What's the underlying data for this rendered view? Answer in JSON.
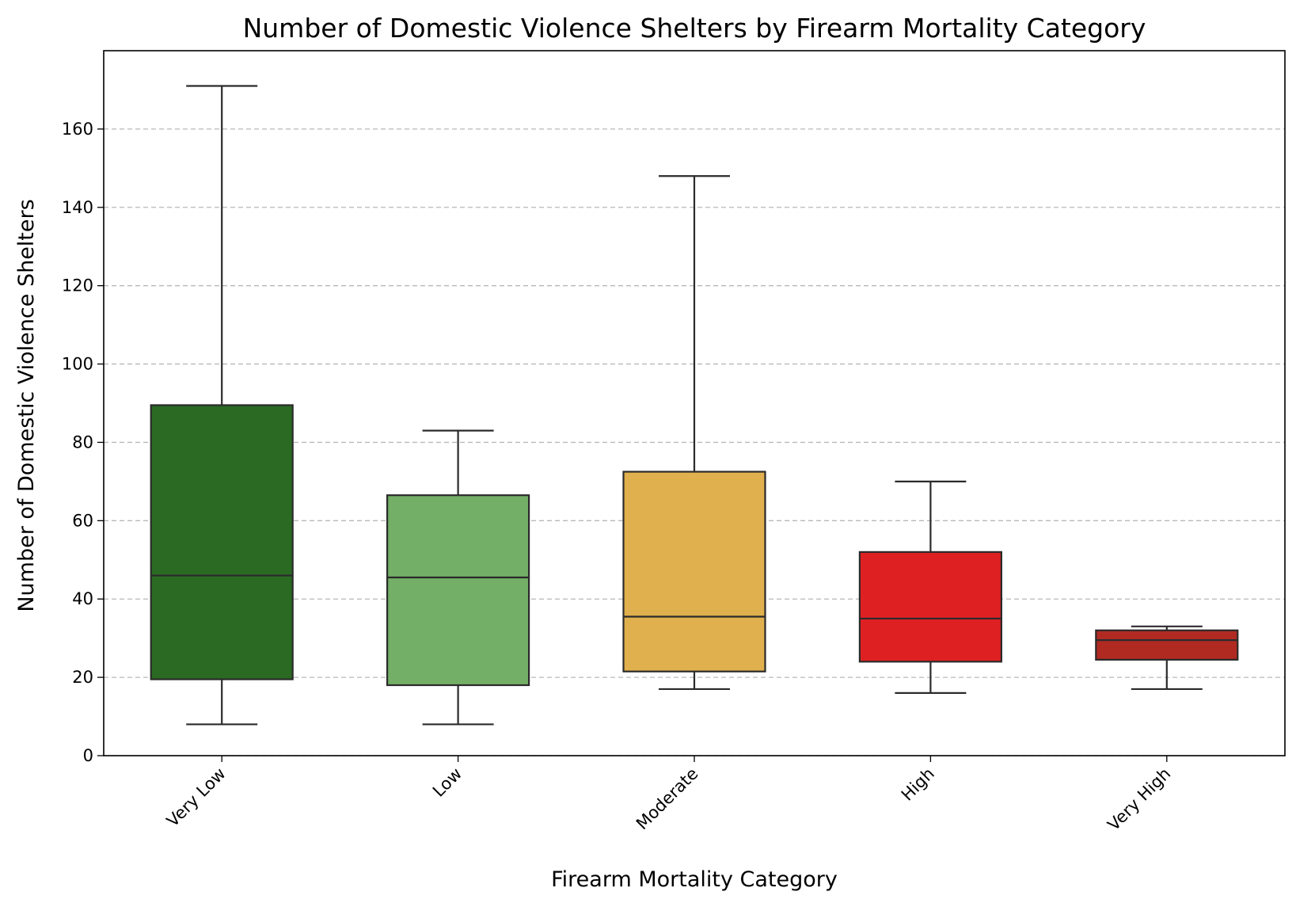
{
  "chart_data": {
    "type": "box",
    "title": "Number of Domestic Violence Shelters by Firearm Mortality Category",
    "xlabel": "Firearm Mortality Category",
    "ylabel": "Number of Domestic Violence Shelters",
    "ylim": [
      0,
      180
    ],
    "yticks": [
      0,
      20,
      40,
      60,
      80,
      100,
      120,
      140,
      160
    ],
    "grid": "horizontal dashed",
    "categories": [
      "Very Low",
      "Low",
      "Moderate",
      "High",
      "Very High"
    ],
    "boxes": [
      {
        "category": "Very Low",
        "min": 8,
        "q1": 19.5,
        "median": 46,
        "q3": 89.5,
        "max": 171,
        "color": "#2a6a23"
      },
      {
        "category": "Low",
        "min": 8,
        "q1": 18,
        "median": 45.5,
        "q3": 66.5,
        "max": 83,
        "color": "#73af66"
      },
      {
        "category": "Moderate",
        "min": 17,
        "q1": 21.5,
        "median": 35.5,
        "q3": 72.5,
        "max": 148,
        "color": "#e1b04e"
      },
      {
        "category": "High",
        "min": 16,
        "q1": 24,
        "median": 35,
        "q3": 52,
        "max": 70,
        "color": "#de2023"
      },
      {
        "category": "Very High",
        "min": 17,
        "q1": 24.5,
        "median": 29.5,
        "q3": 32,
        "max": 33,
        "color": "#b02a22"
      }
    ]
  }
}
